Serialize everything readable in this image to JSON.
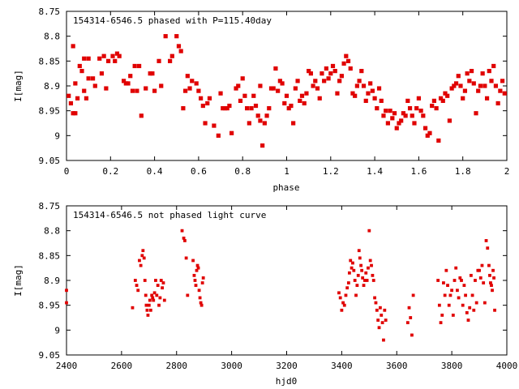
{
  "chart_data": [
    {
      "type": "scatter",
      "title": "154314-6546.5 phased with P=115.40day",
      "xlabel": "phase",
      "ylabel": "I[mag]",
      "xlim": [
        0,
        2
      ],
      "ylim": [
        9.05,
        8.75
      ],
      "y_inverted": true,
      "grid": false,
      "color": "#e00000",
      "x_ticks": [
        "0",
        "0.2",
        "0.4",
        "0.6",
        "0.8",
        "1",
        "1.2",
        "1.4",
        "1.6",
        "1.8",
        "2"
      ],
      "y_ticks": [
        "8.75",
        "8.8",
        "8.85",
        "8.9",
        "8.95",
        "9",
        "9.05"
      ],
      "points": [
        [
          0.01,
          8.92
        ],
        [
          0.02,
          8.935
        ],
        [
          0.03,
          8.82
        ],
        [
          0.03,
          8.955
        ],
        [
          0.04,
          8.955
        ],
        [
          0.04,
          8.895
        ],
        [
          0.05,
          8.925
        ],
        [
          0.06,
          8.86
        ],
        [
          0.07,
          8.87
        ],
        [
          0.08,
          8.845
        ],
        [
          0.08,
          8.91
        ],
        [
          0.09,
          8.925
        ],
        [
          0.1,
          8.845
        ],
        [
          0.1,
          8.885
        ],
        [
          0.12,
          8.885
        ],
        [
          0.13,
          8.9
        ],
        [
          0.15,
          8.845
        ],
        [
          0.16,
          8.875
        ],
        [
          0.17,
          8.84
        ],
        [
          0.18,
          8.905
        ],
        [
          0.19,
          8.85
        ],
        [
          0.21,
          8.84
        ],
        [
          0.22,
          8.85
        ],
        [
          0.23,
          8.835
        ],
        [
          0.24,
          8.84
        ],
        [
          0.26,
          8.89
        ],
        [
          0.27,
          8.895
        ],
        [
          0.28,
          8.895
        ],
        [
          0.29,
          8.88
        ],
        [
          0.3,
          8.91
        ],
        [
          0.31,
          8.86
        ],
        [
          0.32,
          8.91
        ],
        [
          0.33,
          8.86
        ],
        [
          0.34,
          8.96
        ],
        [
          0.36,
          8.905
        ],
        [
          0.38,
          8.875
        ],
        [
          0.39,
          8.875
        ],
        [
          0.4,
          8.91
        ],
        [
          0.42,
          8.85
        ],
        [
          0.43,
          8.9
        ],
        [
          0.45,
          8.8
        ],
        [
          0.47,
          8.85
        ],
        [
          0.48,
          8.84
        ],
        [
          0.5,
          8.8
        ],
        [
          0.51,
          8.82
        ],
        [
          0.52,
          8.83
        ],
        [
          0.53,
          8.945
        ],
        [
          0.54,
          8.91
        ],
        [
          0.55,
          8.88
        ],
        [
          0.56,
          8.905
        ],
        [
          0.57,
          8.89
        ],
        [
          0.59,
          8.895
        ],
        [
          0.6,
          8.91
        ],
        [
          0.61,
          8.925
        ],
        [
          0.62,
          8.94
        ],
        [
          0.63,
          8.975
        ],
        [
          0.64,
          8.935
        ],
        [
          0.65,
          8.925
        ],
        [
          0.67,
          8.98
        ],
        [
          0.69,
          9.0
        ],
        [
          0.7,
          8.915
        ],
        [
          0.71,
          8.945
        ],
        [
          0.72,
          8.945
        ],
        [
          0.73,
          8.945
        ],
        [
          0.74,
          8.94
        ],
        [
          0.75,
          8.995
        ],
        [
          0.77,
          8.905
        ],
        [
          0.78,
          8.9
        ],
        [
          0.79,
          8.93
        ],
        [
          0.8,
          8.885
        ],
        [
          0.81,
          8.92
        ],
        [
          0.82,
          8.945
        ],
        [
          0.83,
          8.975
        ],
        [
          0.84,
          8.945
        ],
        [
          0.85,
          8.92
        ],
        [
          0.86,
          8.94
        ],
        [
          0.87,
          8.96
        ],
        [
          0.88,
          8.97
        ],
        [
          0.88,
          8.9
        ],
        [
          0.89,
          9.02
        ],
        [
          0.9,
          8.975
        ],
        [
          0.91,
          8.96
        ],
        [
          0.92,
          8.945
        ],
        [
          0.93,
          8.905
        ],
        [
          0.94,
          8.905
        ],
        [
          0.95,
          8.865
        ],
        [
          0.96,
          8.91
        ],
        [
          0.97,
          8.89
        ],
        [
          0.98,
          8.895
        ],
        [
          0.99,
          8.935
        ],
        [
          1.0,
          8.92
        ],
        [
          1.01,
          8.945
        ],
        [
          1.02,
          8.94
        ],
        [
          1.03,
          8.975
        ],
        [
          1.04,
          8.905
        ],
        [
          1.05,
          8.89
        ],
        [
          1.06,
          8.93
        ],
        [
          1.07,
          8.92
        ],
        [
          1.08,
          8.935
        ],
        [
          1.09,
          8.915
        ],
        [
          1.1,
          8.87
        ],
        [
          1.11,
          8.875
        ],
        [
          1.12,
          8.9
        ],
        [
          1.13,
          8.89
        ],
        [
          1.14,
          8.905
        ],
        [
          1.15,
          8.925
        ],
        [
          1.16,
          8.875
        ],
        [
          1.17,
          8.89
        ],
        [
          1.18,
          8.865
        ],
        [
          1.19,
          8.885
        ],
        [
          1.2,
          8.875
        ],
        [
          1.21,
          8.86
        ],
        [
          1.22,
          8.87
        ],
        [
          1.23,
          8.915
        ],
        [
          1.24,
          8.89
        ],
        [
          1.25,
          8.88
        ],
        [
          1.26,
          8.855
        ],
        [
          1.27,
          8.84
        ],
        [
          1.28,
          8.85
        ],
        [
          1.29,
          8.865
        ],
        [
          1.3,
          8.915
        ],
        [
          1.31,
          8.92
        ],
        [
          1.32,
          8.9
        ],
        [
          1.33,
          8.89
        ],
        [
          1.34,
          8.87
        ],
        [
          1.35,
          8.9
        ],
        [
          1.36,
          8.93
        ],
        [
          1.37,
          8.915
        ],
        [
          1.38,
          8.895
        ],
        [
          1.39,
          8.91
        ],
        [
          1.4,
          8.925
        ],
        [
          1.41,
          8.945
        ],
        [
          1.42,
          8.905
        ],
        [
          1.43,
          8.93
        ],
        [
          1.44,
          8.96
        ],
        [
          1.45,
          8.95
        ],
        [
          1.46,
          8.975
        ],
        [
          1.47,
          8.95
        ],
        [
          1.48,
          8.965
        ],
        [
          1.49,
          8.955
        ],
        [
          1.5,
          8.985
        ],
        [
          1.51,
          8.975
        ],
        [
          1.52,
          8.97
        ],
        [
          1.53,
          8.955
        ],
        [
          1.54,
          8.96
        ],
        [
          1.55,
          8.93
        ],
        [
          1.56,
          8.945
        ],
        [
          1.57,
          8.96
        ],
        [
          1.58,
          8.975
        ],
        [
          1.59,
          8.945
        ],
        [
          1.6,
          8.925
        ],
        [
          1.61,
          8.95
        ],
        [
          1.62,
          8.96
        ],
        [
          1.63,
          8.985
        ],
        [
          1.64,
          9.0
        ],
        [
          1.65,
          8.995
        ],
        [
          1.66,
          8.94
        ],
        [
          1.67,
          8.93
        ],
        [
          1.68,
          8.945
        ],
        [
          1.69,
          9.01
        ],
        [
          1.7,
          8.925
        ],
        [
          1.71,
          8.93
        ],
        [
          1.72,
          8.915
        ],
        [
          1.73,
          8.92
        ],
        [
          1.74,
          8.97
        ],
        [
          1.75,
          8.905
        ],
        [
          1.76,
          8.9
        ],
        [
          1.77,
          8.895
        ],
        [
          1.78,
          8.88
        ],
        [
          1.79,
          8.9
        ],
        [
          1.8,
          8.925
        ],
        [
          1.81,
          8.91
        ],
        [
          1.82,
          8.875
        ],
        [
          1.83,
          8.89
        ],
        [
          1.84,
          8.87
        ],
        [
          1.85,
          8.895
        ],
        [
          1.86,
          8.955
        ],
        [
          1.87,
          8.91
        ],
        [
          1.88,
          8.9
        ],
        [
          1.89,
          8.875
        ],
        [
          1.9,
          8.9
        ],
        [
          1.91,
          8.925
        ],
        [
          1.92,
          8.87
        ],
        [
          1.93,
          8.89
        ],
        [
          1.94,
          8.86
        ],
        [
          1.95,
          8.9
        ],
        [
          1.96,
          8.935
        ],
        [
          1.97,
          8.91
        ],
        [
          1.98,
          8.89
        ],
        [
          1.99,
          8.915
        ]
      ]
    },
    {
      "type": "scatter",
      "title": "154314-6546.5 not phased light curve",
      "xlabel": "hjd0",
      "ylabel": "I[mag]",
      "xlim": [
        2400,
        4000
      ],
      "ylim": [
        9.05,
        8.75
      ],
      "y_inverted": true,
      "grid": false,
      "color": "#e00000",
      "x_ticks": [
        "2400",
        "2600",
        "2800",
        "3000",
        "3200",
        "3400",
        "3600",
        "3800",
        "4000"
      ],
      "y_ticks": [
        "8.75",
        "8.8",
        "8.85",
        "8.9",
        "8.95",
        "9",
        "9.05"
      ],
      "points": [
        [
          2400,
          8.92
        ],
        [
          2400,
          8.945
        ],
        [
          2640,
          8.955
        ],
        [
          2650,
          8.9
        ],
        [
          2655,
          8.91
        ],
        [
          2660,
          8.92
        ],
        [
          2665,
          8.86
        ],
        [
          2670,
          8.87
        ],
        [
          2675,
          8.85
        ],
        [
          2678,
          8.84
        ],
        [
          2682,
          8.855
        ],
        [
          2685,
          8.9
        ],
        [
          2688,
          8.93
        ],
        [
          2690,
          8.95
        ],
        [
          2693,
          8.96
        ],
        [
          2696,
          8.97
        ],
        [
          2700,
          8.95
        ],
        [
          2703,
          8.94
        ],
        [
          2706,
          8.96
        ],
        [
          2710,
          8.93
        ],
        [
          2713,
          8.935
        ],
        [
          2716,
          8.94
        ],
        [
          2720,
          8.925
        ],
        [
          2724,
          8.9
        ],
        [
          2728,
          8.93
        ],
        [
          2732,
          8.91
        ],
        [
          2736,
          8.95
        ],
        [
          2740,
          8.935
        ],
        [
          2744,
          8.9
        ],
        [
          2748,
          8.915
        ],
        [
          2752,
          8.905
        ],
        [
          2756,
          8.94
        ],
        [
          2820,
          8.8
        ],
        [
          2826,
          8.815
        ],
        [
          2830,
          8.82
        ],
        [
          2835,
          8.855
        ],
        [
          2840,
          8.93
        ],
        [
          2860,
          8.86
        ],
        [
          2864,
          8.89
        ],
        [
          2867,
          8.9
        ],
        [
          2870,
          8.91
        ],
        [
          2873,
          8.88
        ],
        [
          2876,
          8.87
        ],
        [
          2879,
          8.875
        ],
        [
          2882,
          8.92
        ],
        [
          2885,
          8.935
        ],
        [
          2888,
          8.945
        ],
        [
          2891,
          8.95
        ],
        [
          2894,
          8.905
        ],
        [
          2897,
          8.895
        ],
        [
          3390,
          8.925
        ],
        [
          3395,
          8.935
        ],
        [
          3400,
          8.96
        ],
        [
          3405,
          8.945
        ],
        [
          3410,
          8.95
        ],
        [
          3415,
          8.93
        ],
        [
          3420,
          8.915
        ],
        [
          3425,
          8.905
        ],
        [
          3428,
          8.885
        ],
        [
          3432,
          8.86
        ],
        [
          3436,
          8.875
        ],
        [
          3440,
          8.865
        ],
        [
          3444,
          8.88
        ],
        [
          3448,
          8.9
        ],
        [
          3452,
          8.93
        ],
        [
          3456,
          8.91
        ],
        [
          3460,
          8.89
        ],
        [
          3463,
          8.84
        ],
        [
          3466,
          8.855
        ],
        [
          3470,
          8.87
        ],
        [
          3473,
          8.88
        ],
        [
          3476,
          8.895
        ],
        [
          3480,
          8.91
        ],
        [
          3484,
          8.9
        ],
        [
          3488,
          8.885
        ],
        [
          3492,
          8.9
        ],
        [
          3496,
          8.875
        ],
        [
          3500,
          8.8
        ],
        [
          3504,
          8.86
        ],
        [
          3508,
          8.87
        ],
        [
          3512,
          8.89
        ],
        [
          3516,
          8.9
        ],
        [
          3520,
          8.935
        ],
        [
          3524,
          8.945
        ],
        [
          3528,
          8.96
        ],
        [
          3532,
          8.98
        ],
        [
          3536,
          8.995
        ],
        [
          3540,
          8.955
        ],
        [
          3544,
          8.97
        ],
        [
          3548,
          8.985
        ],
        [
          3552,
          9.02
        ],
        [
          3556,
          8.96
        ],
        [
          3560,
          8.98
        ],
        [
          3640,
          8.985
        ],
        [
          3645,
          8.955
        ],
        [
          3650,
          8.975
        ],
        [
          3655,
          9.01
        ],
        [
          3660,
          8.93
        ],
        [
          3750,
          8.9
        ],
        [
          3755,
          8.95
        ],
        [
          3760,
          8.985
        ],
        [
          3765,
          8.97
        ],
        [
          3770,
          8.905
        ],
        [
          3775,
          8.93
        ],
        [
          3780,
          8.88
        ],
        [
          3785,
          8.91
        ],
        [
          3790,
          8.95
        ],
        [
          3795,
          8.93
        ],
        [
          3800,
          8.92
        ],
        [
          3805,
          8.97
        ],
        [
          3810,
          8.9
        ],
        [
          3815,
          8.875
        ],
        [
          3820,
          8.92
        ],
        [
          3825,
          8.935
        ],
        [
          3830,
          8.895
        ],
        [
          3835,
          8.9
        ],
        [
          3840,
          8.95
        ],
        [
          3845,
          8.91
        ],
        [
          3850,
          8.93
        ],
        [
          3855,
          8.965
        ],
        [
          3860,
          8.98
        ],
        [
          3865,
          8.955
        ],
        [
          3870,
          8.89
        ],
        [
          3875,
          8.93
        ],
        [
          3880,
          8.96
        ],
        [
          3885,
          8.9
        ],
        [
          3890,
          8.945
        ],
        [
          3895,
          8.88
        ],
        [
          3900,
          8.88
        ],
        [
          3905,
          8.895
        ],
        [
          3910,
          8.87
        ],
        [
          3915,
          8.905
        ],
        [
          3920,
          8.945
        ],
        [
          3925,
          8.82
        ],
        [
          3930,
          8.835
        ],
        [
          3935,
          8.87
        ],
        [
          3938,
          8.89
        ],
        [
          3941,
          8.905
        ],
        [
          3944,
          8.91
        ],
        [
          3947,
          8.92
        ],
        [
          3950,
          8.88
        ],
        [
          3953,
          8.895
        ],
        [
          3956,
          8.96
        ]
      ]
    }
  ]
}
